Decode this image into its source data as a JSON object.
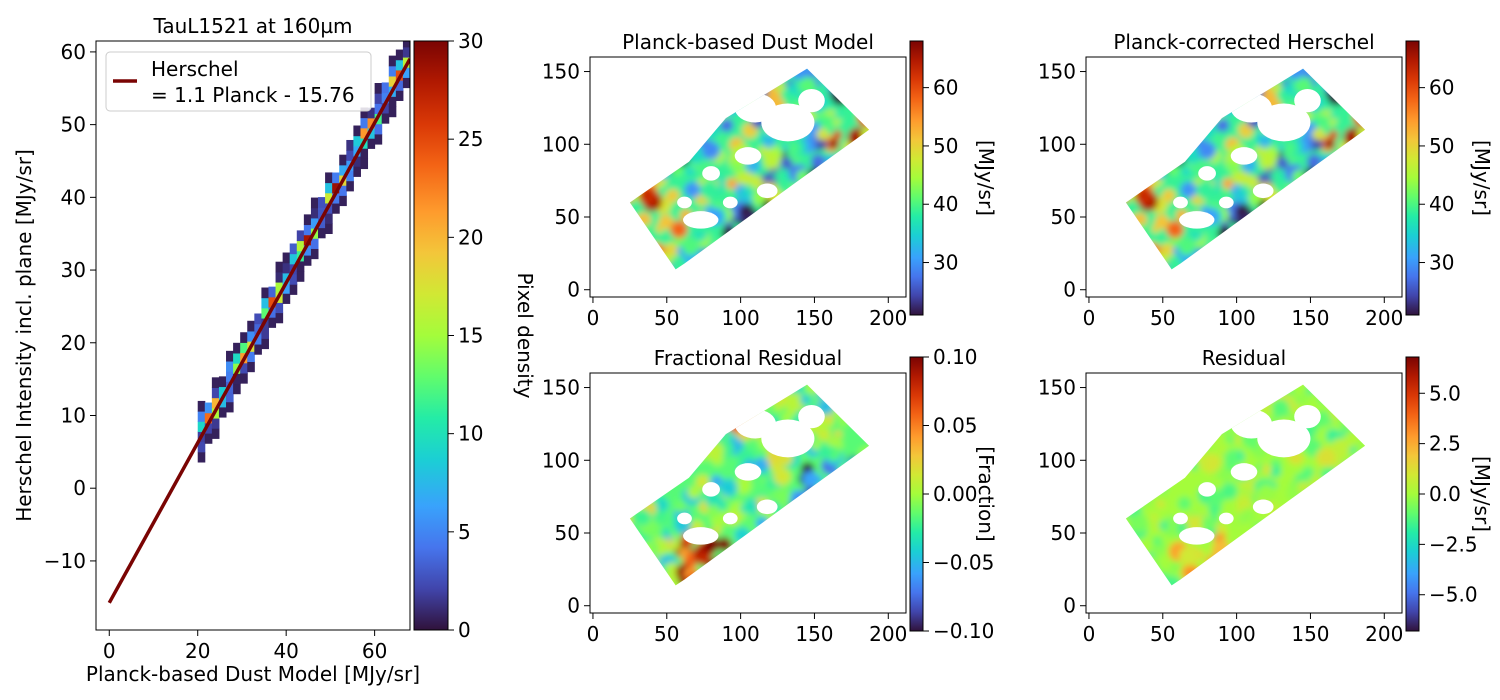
{
  "chart_data": [
    {
      "type": "heatmap",
      "panel": "scatter-density",
      "title": "TauL1521 at 160µm",
      "xlabel": "Planck-based Dust Model [MJy/sr]",
      "ylabel": "Herschel Intensity incl. plane [MJy/sr]",
      "xlim": [
        -3,
        68
      ],
      "ylim": [
        -19.5,
        61.5
      ],
      "xticks": [
        0,
        20,
        40,
        60
      ],
      "yticks": [
        -10,
        0,
        10,
        20,
        30,
        40,
        50,
        60
      ],
      "density_band": {
        "x_range": [
          20,
          68
        ],
        "relation_slope": 1.1,
        "relation_intercept": -15.76
      },
      "fit_line": {
        "name": "Herschel\n= 1.1 Planck - 15.76",
        "slope": 1.1,
        "intercept": -15.76,
        "x_range": [
          0,
          68
        ],
        "color": "#7a0403"
      },
      "legend": {
        "position": "top-left",
        "lines": [
          "Herschel",
          "= 1.1 Planck - 15.76"
        ]
      },
      "colorbar": {
        "label": "Pixel density",
        "range": [
          0,
          30
        ],
        "ticks": [
          0,
          5,
          10,
          15,
          20,
          25,
          30
        ]
      }
    },
    {
      "type": "heatmap",
      "panel": "map",
      "title": "Planck-based Dust Model",
      "xticks": [
        0,
        50,
        100,
        150,
        200
      ],
      "yticks": [
        0,
        50,
        100,
        150
      ],
      "xlim": [
        -2,
        212
      ],
      "ylim": [
        -5,
        160
      ],
      "colorbar": {
        "label": "[MJy/sr]",
        "range": [
          21,
          68
        ],
        "ticks": [
          30,
          40,
          50,
          60
        ]
      }
    },
    {
      "type": "heatmap",
      "panel": "map",
      "title": "Planck-corrected Herschel",
      "xticks": [
        0,
        50,
        100,
        150,
        200
      ],
      "yticks": [
        0,
        50,
        100,
        150
      ],
      "xlim": [
        -2,
        212
      ],
      "ylim": [
        -5,
        160
      ],
      "colorbar": {
        "label": "[MJy/sr]",
        "range": [
          21,
          68
        ],
        "ticks": [
          30,
          40,
          50,
          60
        ]
      }
    },
    {
      "type": "heatmap",
      "panel": "map",
      "title": "Fractional Residual",
      "xticks": [
        0,
        50,
        100,
        150,
        200
      ],
      "yticks": [
        0,
        50,
        100,
        150
      ],
      "xlim": [
        -2,
        212
      ],
      "ylim": [
        -5,
        160
      ],
      "colorbar": {
        "label": "[Fraction]",
        "range": [
          -0.1,
          0.1
        ],
        "ticks": [
          "−0.10",
          "−0.05",
          "0.00",
          "0.05",
          "0.10"
        ]
      }
    },
    {
      "type": "heatmap",
      "panel": "map",
      "title": "Residual",
      "xticks": [
        0,
        50,
        100,
        150,
        200
      ],
      "yticks": [
        0,
        50,
        100,
        150
      ],
      "xlim": [
        -2,
        212
      ],
      "ylim": [
        -5,
        160
      ],
      "colorbar": {
        "label": "[MJy/sr]",
        "range": [
          -6.8,
          6.8
        ],
        "ticks": [
          "−5.0",
          "−2.5",
          "0.0",
          "2.5",
          "5.0"
        ]
      }
    }
  ]
}
